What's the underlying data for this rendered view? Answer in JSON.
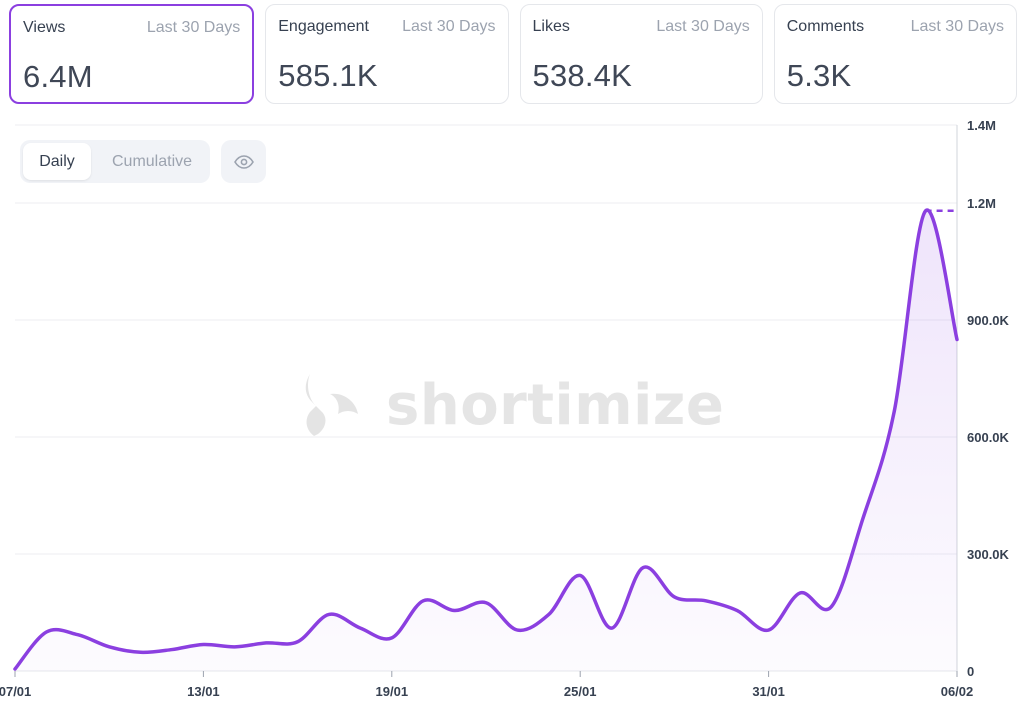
{
  "cards": [
    {
      "label": "Views",
      "period": "Last 30 Days",
      "value": "6.4M",
      "active": true
    },
    {
      "label": "Engagement",
      "period": "Last 30 Days",
      "value": "585.1K",
      "active": false
    },
    {
      "label": "Likes",
      "period": "Last 30 Days",
      "value": "538.4K",
      "active": false
    },
    {
      "label": "Comments",
      "period": "Last 30 Days",
      "value": "5.3K",
      "active": false
    }
  ],
  "toggle": {
    "daily_label": "Daily",
    "cumulative_label": "Cumulative",
    "selected": "Daily"
  },
  "eye_icon": "eye-icon",
  "watermark": {
    "text": "shortimize"
  },
  "colors": {
    "accent": "#8b3fe0",
    "line": "#8b3fe0",
    "grid": "#eceef2",
    "muted": "#9ca3af"
  },
  "chart_data": {
    "type": "area",
    "x": [
      "07/01",
      "08/01",
      "09/01",
      "10/01",
      "11/01",
      "12/01",
      "13/01",
      "14/01",
      "15/01",
      "16/01",
      "17/01",
      "18/01",
      "19/01",
      "20/01",
      "21/01",
      "22/01",
      "23/01",
      "24/01",
      "25/01",
      "26/01",
      "27/01",
      "28/01",
      "29/01",
      "30/01",
      "31/01",
      "01/02",
      "02/02",
      "03/02",
      "04/02",
      "05/02",
      "06/02"
    ],
    "values": [
      5000,
      100000,
      93000,
      62000,
      48000,
      55000,
      68000,
      62000,
      72000,
      75000,
      145000,
      110000,
      85000,
      180000,
      155000,
      175000,
      105000,
      145000,
      245000,
      110000,
      265000,
      190000,
      180000,
      155000,
      105000,
      200000,
      165000,
      390000,
      665000,
      1180000,
      850000
    ],
    "xticks": [
      "07/01",
      "13/01",
      "19/01",
      "25/01",
      "31/01",
      "06/02"
    ],
    "yticks": [
      0,
      300000,
      600000,
      900000,
      1200000,
      1400000
    ],
    "ytick_labels": [
      "0",
      "300.0K",
      "600.0K",
      "900.0K",
      "1.2M",
      "1.4M"
    ],
    "ylim": [
      0,
      1400000
    ],
    "peak_marker": 1180000,
    "grid": true,
    "y_axis_position": "right"
  }
}
